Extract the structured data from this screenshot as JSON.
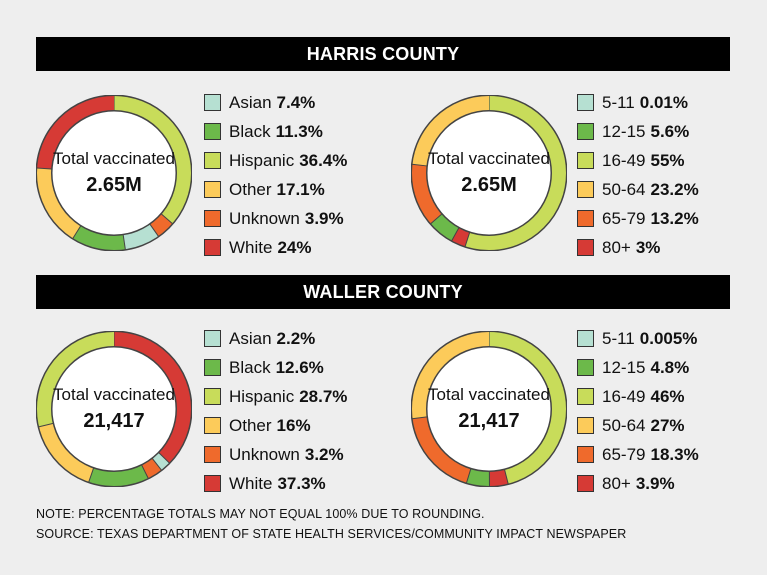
{
  "colors": {
    "asian": "#b6e0d2",
    "black": "#6cb94a",
    "hispanic": "#c8dc5a",
    "other": "#fccb5a",
    "unknown": "#ef6a2c",
    "white": "#d63a35",
    "age_5_11": "#b6e0d2",
    "age_12_15": "#6cb94a",
    "age_16_49": "#c8dc5a",
    "age_50_64": "#fccb5a",
    "age_65_79": "#ef6a2c",
    "age_80": "#d63a35"
  },
  "harris": {
    "title": "HARRIS COUNTY",
    "center_label": "Total vaccinated",
    "total": "2.65M"
  },
  "waller": {
    "title": "WALLER COUNTY",
    "center_label": "Total vaccinated",
    "total": "21,417"
  },
  "notes": {
    "note": "NOTE: PERCENTAGE TOTALS MAY NOT EQUAL 100% DUE TO ROUNDING.",
    "source": "SOURCE: TEXAS DEPARTMENT OF STATE HEALTH SERVICES/COMMUNITY IMPACT NEWSPAPER"
  },
  "chart_data": [
    {
      "type": "pie",
      "title": "HARRIS COUNTY",
      "series": [
        {
          "values": [
            7.4,
            11.3,
            36.4,
            17.1,
            3.9,
            24
          ]
        }
      ],
      "categories": [
        "Asian",
        "Black",
        "Hispanic",
        "Other",
        "Unknown",
        "White"
      ],
      "labels": [
        "7.4%",
        "11.3%",
        "36.4%",
        "17.1%",
        "3.9%",
        "24%"
      ],
      "color_keys": [
        "asian",
        "black",
        "hispanic",
        "other",
        "unknown",
        "white"
      ],
      "draw_order": [
        2,
        4,
        0,
        1,
        3,
        5
      ],
      "center": "2.65M"
    },
    {
      "type": "pie",
      "title": "HARRIS COUNTY",
      "series": [
        {
          "values": [
            0.01,
            5.6,
            55,
            23.2,
            13.2,
            3
          ]
        }
      ],
      "categories": [
        "5-11",
        "12-15",
        "16-49",
        "50-64",
        "65-79",
        "80+"
      ],
      "labels": [
        "0.01%",
        "5.6%",
        "55%",
        "23.2%",
        "13.2%",
        "3%"
      ],
      "color_keys": [
        "age_5_11",
        "age_12_15",
        "age_16_49",
        "age_50_64",
        "age_65_79",
        "age_80"
      ],
      "draw_order": [
        0,
        2,
        5,
        1,
        4,
        3
      ],
      "center": "2.65M"
    },
    {
      "type": "pie",
      "title": "WALLER COUNTY",
      "series": [
        {
          "values": [
            2.2,
            12.6,
            28.7,
            16,
            3.2,
            37.3
          ]
        }
      ],
      "categories": [
        "Asian",
        "Black",
        "Hispanic",
        "Other",
        "Unknown",
        "White"
      ],
      "labels": [
        "2.2%",
        "12.6%",
        "28.7%",
        "16%",
        "3.2%",
        "37.3%"
      ],
      "color_keys": [
        "asian",
        "black",
        "hispanic",
        "other",
        "unknown",
        "white"
      ],
      "draw_order": [
        5,
        0,
        4,
        1,
        3,
        2
      ],
      "center": "21,417"
    },
    {
      "type": "pie",
      "title": "WALLER COUNTY",
      "series": [
        {
          "values": [
            0.005,
            4.8,
            46,
            27,
            18.3,
            3.9
          ]
        }
      ],
      "categories": [
        "5-11",
        "12-15",
        "16-49",
        "50-64",
        "65-79",
        "80+"
      ],
      "labels": [
        "0.005%",
        "4.8%",
        "46%",
        "27%",
        "18.3%",
        "3.9%"
      ],
      "color_keys": [
        "age_5_11",
        "age_12_15",
        "age_16_49",
        "age_50_64",
        "age_65_79",
        "age_80"
      ],
      "draw_order": [
        0,
        2,
        5,
        1,
        4,
        3
      ],
      "center": "21,417"
    }
  ]
}
